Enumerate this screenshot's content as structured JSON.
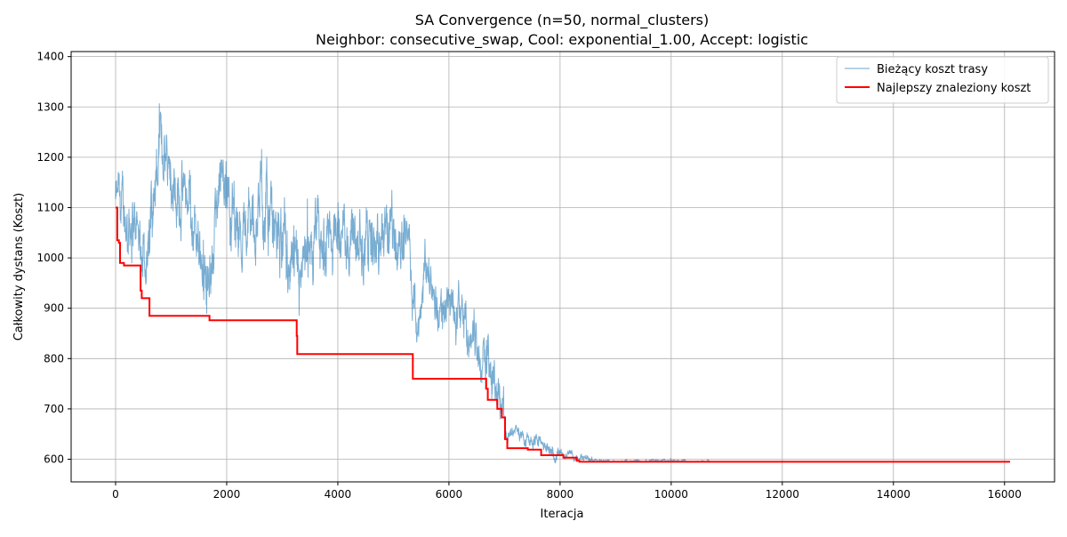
{
  "chart_data": {
    "type": "line",
    "title": "SA Convergence (n=50, normal_clusters)",
    "subtitle": "Neighbor: consecutive_swap, Cool: exponential_1.00, Accept: logistic",
    "xlabel": "Iteracja",
    "ylabel": "Całkowity dystans (Koszt)",
    "xlim": [
      -800,
      16900
    ],
    "ylim": [
      555,
      1410
    ],
    "xticks": [
      0,
      2000,
      4000,
      6000,
      8000,
      10000,
      12000,
      14000,
      16000
    ],
    "yticks": [
      600,
      700,
      800,
      900,
      1000,
      1100,
      1200,
      1300,
      1400
    ],
    "grid": true,
    "legend_position": "top-right",
    "series": [
      {
        "name": "Bieżący koszt trasy",
        "color": "#1f77b4",
        "style": "noisy-line",
        "points": [
          [
            0,
            1100
          ],
          [
            100,
            1090
          ],
          [
            200,
            1070
          ],
          [
            300,
            1080
          ],
          [
            400,
            1045
          ],
          [
            500,
            1030
          ],
          [
            600,
            1010
          ],
          [
            700,
            1150
          ],
          [
            800,
            1200
          ],
          [
            900,
            1220
          ],
          [
            1000,
            1205
          ],
          [
            1100,
            1150
          ],
          [
            1200,
            1130
          ],
          [
            1300,
            1120
          ],
          [
            1400,
            1080
          ],
          [
            1500,
            1040
          ],
          [
            1600,
            970
          ],
          [
            1700,
            935
          ],
          [
            1800,
            1060
          ],
          [
            1900,
            1110
          ],
          [
            2000,
            1150
          ],
          [
            2100,
            1110
          ],
          [
            2200,
            1080
          ],
          [
            2300,
            1060
          ],
          [
            2400,
            1060
          ],
          [
            2500,
            1080
          ],
          [
            2600,
            1130
          ],
          [
            2700,
            1100
          ],
          [
            2800,
            1060
          ],
          [
            2900,
            1040
          ],
          [
            3000,
            1020
          ],
          [
            3100,
            990
          ],
          [
            3200,
            960
          ],
          [
            3300,
            920
          ],
          [
            3400,
            950
          ],
          [
            3500,
            980
          ],
          [
            3600,
            1020
          ],
          [
            3700,
            1000
          ],
          [
            3800,
            1030
          ],
          [
            3900,
            1040
          ],
          [
            4000,
            1030
          ],
          [
            4100,
            1060
          ],
          [
            4200,
            1040
          ],
          [
            4300,
            1020
          ],
          [
            4400,
            1030
          ],
          [
            4500,
            1050
          ],
          [
            4600,
            1040
          ],
          [
            4700,
            1010
          ],
          [
            4800,
            1040
          ],
          [
            4900,
            1020
          ],
          [
            5000,
            1080
          ],
          [
            5100,
            1050
          ],
          [
            5200,
            1030
          ],
          [
            5300,
            990
          ],
          [
            5350,
            880
          ],
          [
            5400,
            890
          ],
          [
            5500,
            920
          ],
          [
            5600,
            960
          ],
          [
            5700,
            940
          ],
          [
            5800,
            900
          ],
          [
            5900,
            890
          ],
          [
            6000,
            930
          ],
          [
            6100,
            910
          ],
          [
            6200,
            880
          ],
          [
            6300,
            860
          ],
          [
            6400,
            850
          ],
          [
            6500,
            830
          ],
          [
            6600,
            810
          ],
          [
            6700,
            790
          ],
          [
            6800,
            760
          ],
          [
            6900,
            720
          ],
          [
            7000,
            690
          ],
          [
            7050,
            640
          ],
          [
            7200,
            660
          ],
          [
            7300,
            650
          ],
          [
            7400,
            640
          ],
          [
            7600,
            640
          ],
          [
            7700,
            625
          ],
          [
            7800,
            620
          ],
          [
            7900,
            618
          ],
          [
            8000,
            622
          ],
          [
            8100,
            612
          ],
          [
            8200,
            608
          ],
          [
            8300,
            604
          ],
          [
            8500,
            600
          ],
          [
            8700,
            598
          ],
          [
            9000,
            597
          ],
          [
            9500,
            596
          ],
          [
            10000,
            596
          ],
          [
            10700,
            595
          ]
        ]
      },
      {
        "name": "Najlepszy znaleziony koszt",
        "color": "#ff0000",
        "style": "step",
        "points": [
          [
            0,
            1100
          ],
          [
            30,
            1035
          ],
          [
            60,
            1030
          ],
          [
            80,
            990
          ],
          [
            150,
            985
          ],
          [
            430,
            985
          ],
          [
            450,
            935
          ],
          [
            470,
            920
          ],
          [
            600,
            920
          ],
          [
            610,
            885
          ],
          [
            1680,
            885
          ],
          [
            1690,
            876
          ],
          [
            3250,
            876
          ],
          [
            3260,
            845
          ],
          [
            3270,
            809
          ],
          [
            5340,
            809
          ],
          [
            5350,
            760
          ],
          [
            6650,
            760
          ],
          [
            6670,
            740
          ],
          [
            6700,
            718
          ],
          [
            6850,
            718
          ],
          [
            6870,
            700
          ],
          [
            6950,
            683
          ],
          [
            7000,
            683
          ],
          [
            7010,
            640
          ],
          [
            7050,
            622
          ],
          [
            7400,
            622
          ],
          [
            7420,
            619
          ],
          [
            7650,
            619
          ],
          [
            7660,
            608
          ],
          [
            8050,
            608
          ],
          [
            8060,
            603
          ],
          [
            8280,
            603
          ],
          [
            8300,
            597
          ],
          [
            8350,
            595
          ],
          [
            16100,
            595
          ]
        ]
      }
    ]
  }
}
